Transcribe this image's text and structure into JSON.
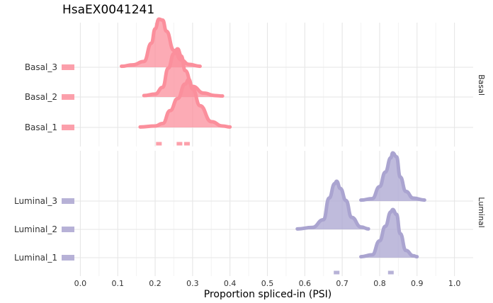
{
  "chart_data": {
    "type": "ridgeline",
    "title": "HsaEX0041241",
    "xlabel": "Proportion spliced-in (PSI)",
    "ylabel": "",
    "xlim": [
      -0.05,
      1.05
    ],
    "x_ticks": [
      "0.0",
      "0.1",
      "0.2",
      "0.3",
      "0.4",
      "0.5",
      "0.6",
      "0.7",
      "0.8",
      "0.9",
      "1.0"
    ],
    "grid": true,
    "colors": {
      "Basal": "#fb8f9c",
      "Luminal": "#aaa4d0"
    },
    "facets": [
      {
        "name": "Basal",
        "rows": [
          {
            "label": "Basal_3",
            "range": [
              0.11,
              0.32
            ],
            "peak": 0.21,
            "density": [
              [
                0.11,
                0.02
              ],
              [
                0.14,
                0.05
              ],
              [
                0.17,
                0.12
              ],
              [
                0.19,
                0.5
              ],
              [
                0.2,
                0.8
              ],
              [
                0.21,
                1.0
              ],
              [
                0.22,
                0.98
              ],
              [
                0.23,
                0.75
              ],
              [
                0.25,
                0.35
              ],
              [
                0.27,
                0.15
              ],
              [
                0.29,
                0.06
              ],
              [
                0.32,
                0.02
              ]
            ]
          },
          {
            "label": "Basal_2",
            "range": [
              0.17,
              0.38
            ],
            "peak": 0.26,
            "density": [
              [
                0.17,
                0.03
              ],
              [
                0.2,
                0.06
              ],
              [
                0.22,
                0.2
              ],
              [
                0.235,
                0.6
              ],
              [
                0.25,
                0.9
              ],
              [
                0.26,
                1.0
              ],
              [
                0.27,
                0.85
              ],
              [
                0.28,
                0.55
              ],
              [
                0.3,
                0.22
              ],
              [
                0.33,
                0.08
              ],
              [
                0.36,
                0.03
              ],
              [
                0.38,
                0.02
              ]
            ]
          },
          {
            "label": "Basal_1",
            "range": [
              0.16,
              0.4
            ],
            "peak": 0.29,
            "density": [
              [
                0.16,
                0.01
              ],
              [
                0.2,
                0.03
              ],
              [
                0.22,
                0.08
              ],
              [
                0.24,
                0.35
              ],
              [
                0.26,
                0.6
              ],
              [
                0.28,
                0.9
              ],
              [
                0.29,
                1.0
              ],
              [
                0.3,
                0.8
              ],
              [
                0.32,
                0.45
              ],
              [
                0.35,
                0.12
              ],
              [
                0.38,
                0.03
              ],
              [
                0.4,
                0.01
              ]
            ]
          }
        ],
        "rug": [
          0.21,
          0.265,
          0.285
        ]
      },
      {
        "name": "Luminal",
        "rows": [
          {
            "label": "Luminal_3",
            "range": [
              0.75,
              0.92
            ],
            "peak": 0.835,
            "density": [
              [
                0.75,
                0.02
              ],
              [
                0.78,
                0.05
              ],
              [
                0.8,
                0.3
              ],
              [
                0.815,
                0.6
              ],
              [
                0.83,
                0.9
              ],
              [
                0.835,
                1.0
              ],
              [
                0.845,
                0.92
              ],
              [
                0.855,
                0.5
              ],
              [
                0.87,
                0.2
              ],
              [
                0.89,
                0.06
              ],
              [
                0.92,
                0.02
              ]
            ]
          },
          {
            "label": "Luminal_2",
            "range": [
              0.58,
              0.77
            ],
            "peak": 0.685,
            "density": [
              [
                0.58,
                0.01
              ],
              [
                0.62,
                0.04
              ],
              [
                0.65,
                0.2
              ],
              [
                0.665,
                0.65
              ],
              [
                0.68,
                0.95
              ],
              [
                0.685,
                1.0
              ],
              [
                0.695,
                0.85
              ],
              [
                0.71,
                0.6
              ],
              [
                0.725,
                0.25
              ],
              [
                0.75,
                0.05
              ],
              [
                0.77,
                0.01
              ]
            ]
          },
          {
            "label": "Luminal_1",
            "range": [
              0.75,
              0.9
            ],
            "peak": 0.835,
            "density": [
              [
                0.75,
                0.02
              ],
              [
                0.78,
                0.06
              ],
              [
                0.8,
                0.35
              ],
              [
                0.815,
                0.65
              ],
              [
                0.83,
                0.95
              ],
              [
                0.835,
                1.0
              ],
              [
                0.845,
                0.9
              ],
              [
                0.855,
                0.5
              ],
              [
                0.87,
                0.15
              ],
              [
                0.89,
                0.04
              ],
              [
                0.9,
                0.02
              ]
            ]
          }
        ],
        "rug": [
          0.685,
          0.83
        ]
      }
    ]
  }
}
